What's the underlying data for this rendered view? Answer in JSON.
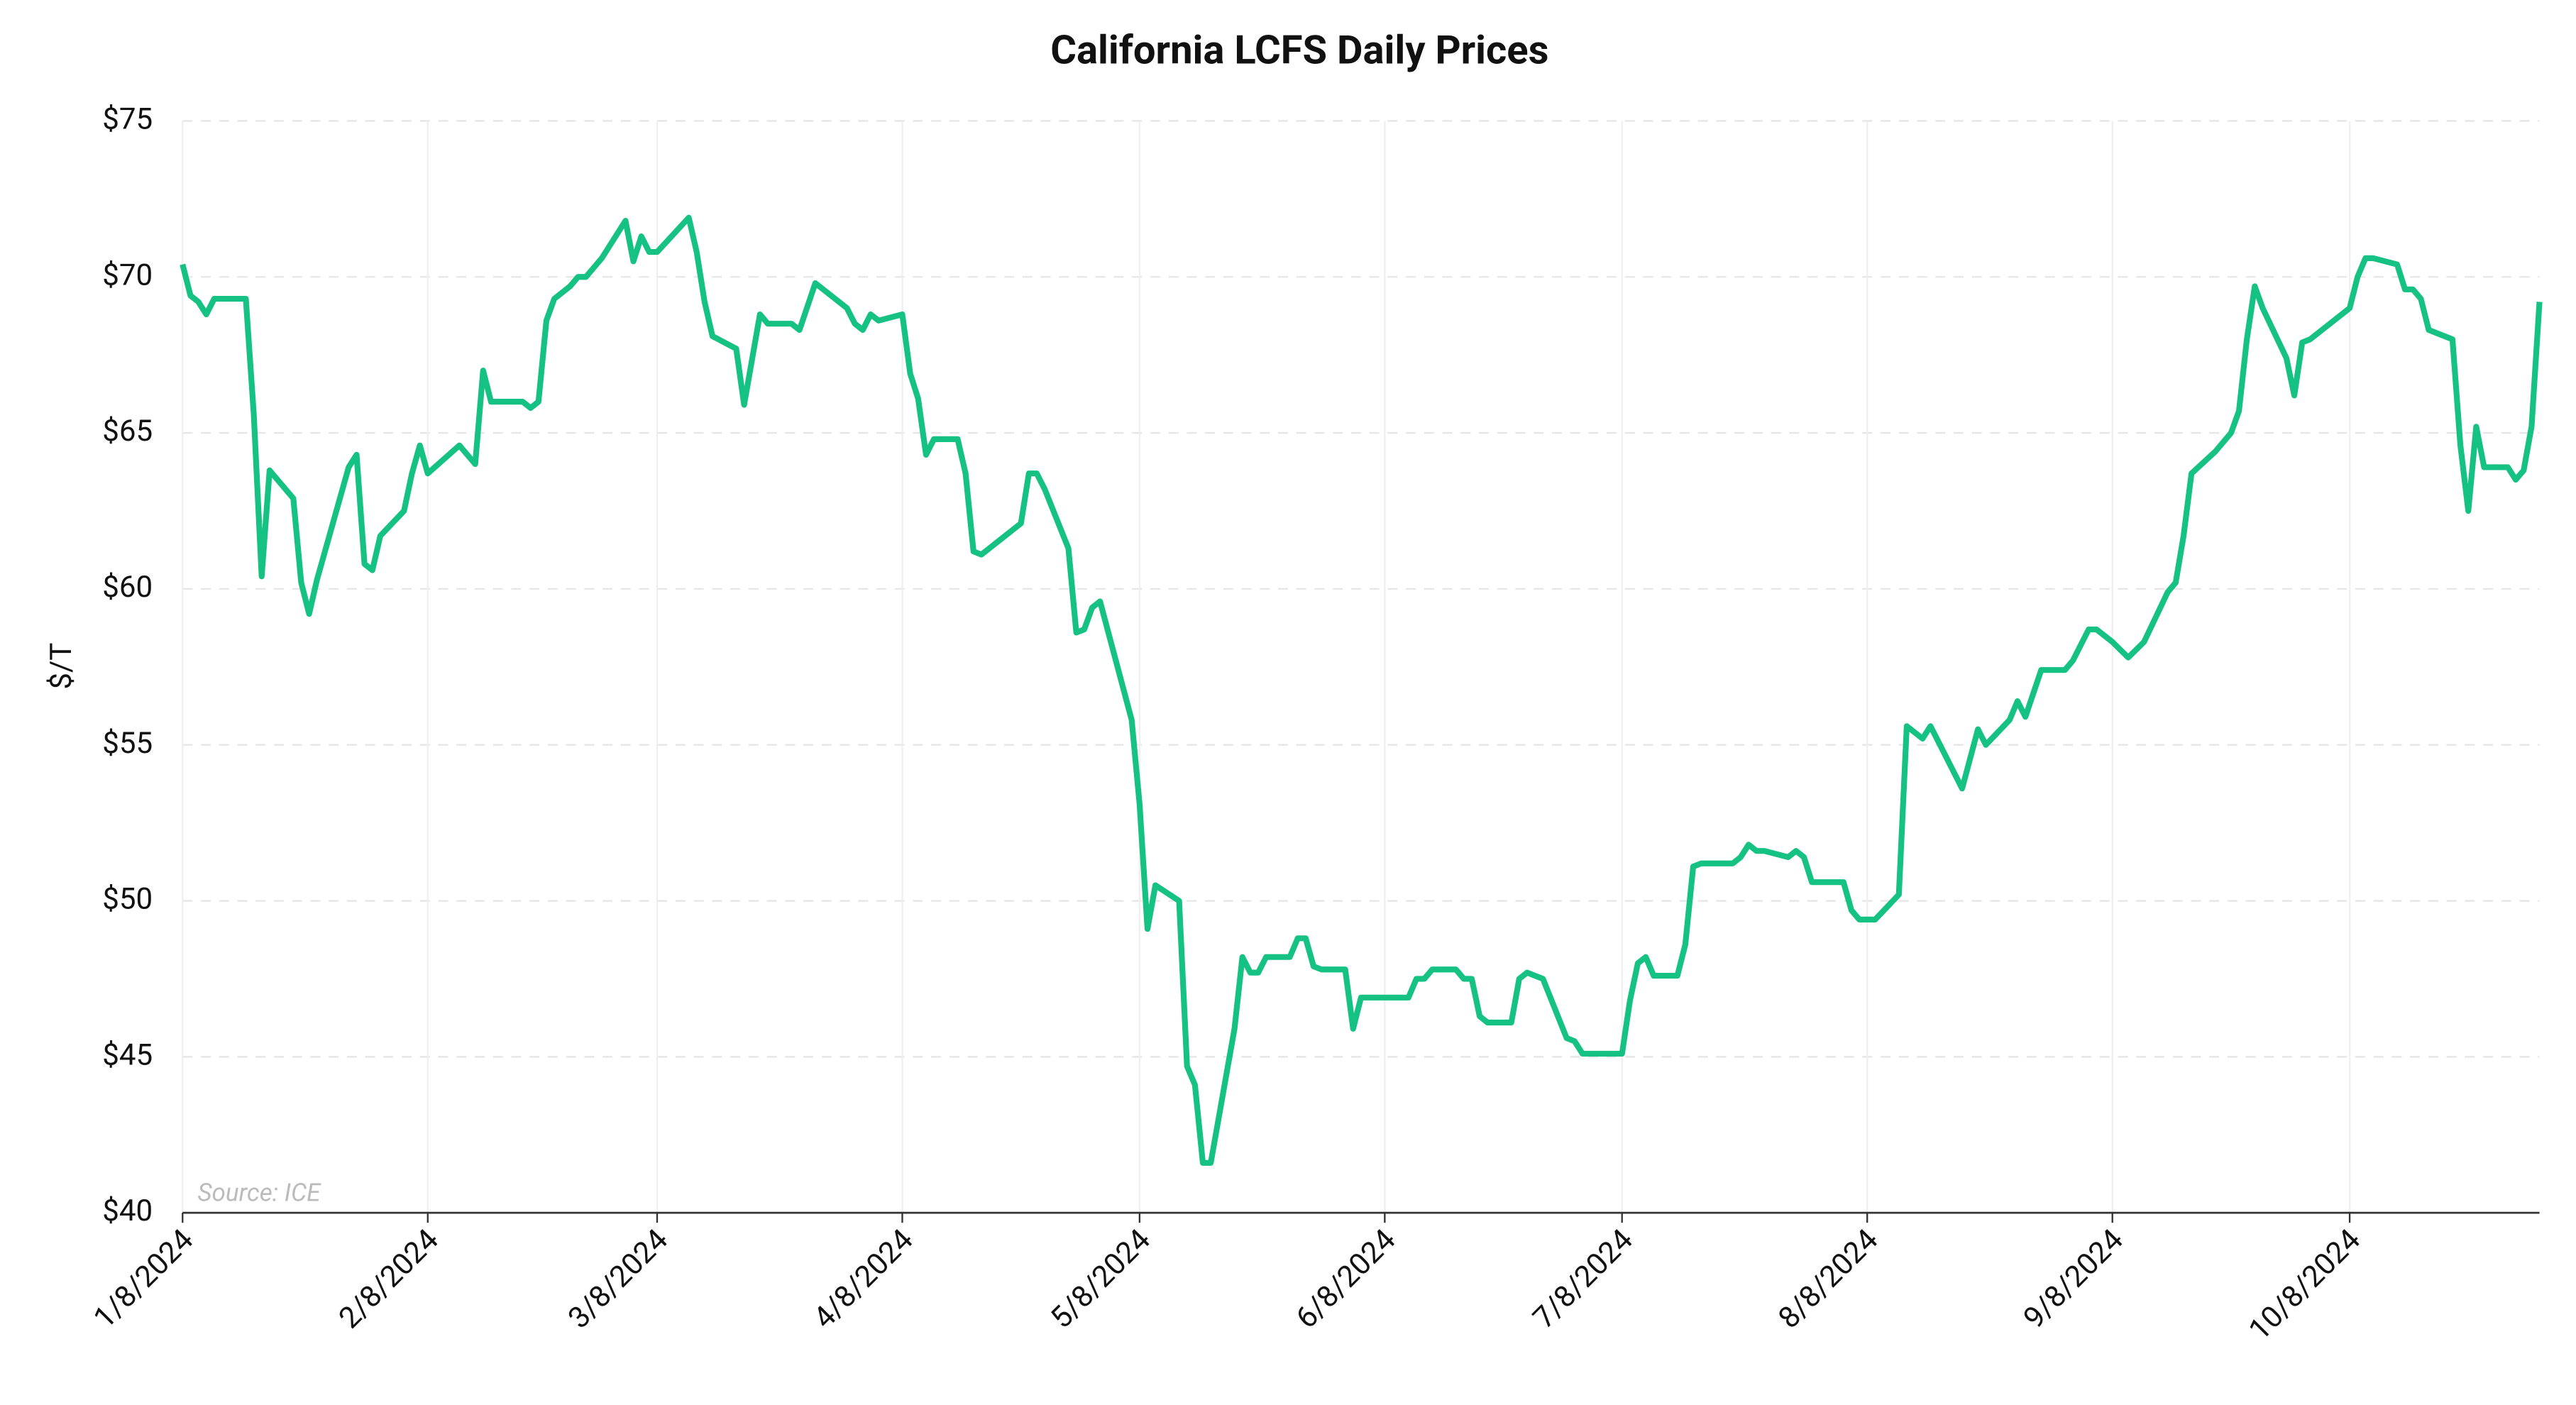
{
  "chart_data": {
    "type": "line",
    "title": "California LCFS Daily Prices",
    "y_label": "$/T",
    "annotation": "Source: ICE",
    "color": "#16c184",
    "grid": true,
    "xlim": [
      "1/8/2024",
      "11/1/2024"
    ],
    "xticks": [
      "1/8/2024",
      "2/8/2024",
      "3/8/2024",
      "4/8/2024",
      "5/8/2024",
      "6/8/2024",
      "7/8/2024",
      "8/8/2024",
      "9/8/2024",
      "10/8/2024"
    ],
    "ylim": [
      40,
      75
    ],
    "yticks": [
      {
        "value": 40,
        "label": "$40"
      },
      {
        "value": 45,
        "label": "$45"
      },
      {
        "value": 50,
        "label": "$50"
      },
      {
        "value": 55,
        "label": "$55"
      },
      {
        "value": 60,
        "label": "$60"
      },
      {
        "value": 65,
        "label": "$65"
      },
      {
        "value": 70,
        "label": "$70"
      },
      {
        "value": 75,
        "label": "$75"
      }
    ],
    "x": [
      "1/8/2024",
      "1/9/2024",
      "1/10/2024",
      "1/11/2024",
      "1/12/2024",
      "1/16/2024",
      "1/17/2024",
      "1/18/2024",
      "1/19/2024",
      "1/22/2024",
      "1/23/2024",
      "1/24/2024",
      "1/25/2024",
      "1/29/2024",
      "1/30/2024",
      "1/31/2024",
      "2/1/2024",
      "2/2/2024",
      "2/5/2024",
      "2/6/2024",
      "2/7/2024",
      "2/8/2024",
      "2/12/2024",
      "2/14/2024",
      "2/15/2024",
      "2/16/2024",
      "2/20/2024",
      "2/21/2024",
      "2/22/2024",
      "2/23/2024",
      "2/24/2024",
      "2/26/2024",
      "2/27/2024",
      "2/28/2024",
      "3/1/2024",
      "3/4/2024",
      "3/5/2024",
      "3/6/2024",
      "3/7/2024",
      "3/8/2024",
      "3/12/2024",
      "3/13/2024",
      "3/14/2024",
      "3/15/2024",
      "3/18/2024",
      "3/19/2024",
      "3/21/2024",
      "3/22/2024",
      "3/25/2024",
      "3/26/2024",
      "3/28/2024",
      "4/1/2024",
      "4/2/2024",
      "4/3/2024",
      "4/4/2024",
      "4/5/2024",
      "4/8/2024",
      "4/9/2024",
      "4/10/2024",
      "4/11/2024",
      "4/12/2024",
      "4/15/2024",
      "4/16/2024",
      "4/17/2024",
      "4/18/2024",
      "4/23/2024",
      "4/24/2024",
      "4/25/2024",
      "4/26/2024",
      "4/29/2024",
      "4/30/2024",
      "5/1/2024",
      "5/2/2024",
      "5/3/2024",
      "5/7/2024",
      "5/8/2024",
      "5/9/2024",
      "5/10/2024",
      "5/13/2024",
      "5/14/2024",
      "5/15/2024",
      "5/16/2024",
      "5/17/2024",
      "5/20/2024",
      "5/21/2024",
      "5/22/2024",
      "5/23/2024",
      "5/24/2024",
      "5/27/2024",
      "5/28/2024",
      "5/29/2024",
      "5/30/2024",
      "5/31/2024",
      "6/3/2024",
      "6/4/2024",
      "6/5/2024",
      "6/11/2024",
      "6/12/2024",
      "6/13/2024",
      "6/14/2024",
      "6/17/2024",
      "6/18/2024",
      "6/19/2024",
      "6/20/2024",
      "6/21/2024",
      "6/24/2024",
      "6/25/2024",
      "6/26/2024",
      "6/27/2024",
      "6/28/2024",
      "7/1/2024",
      "7/2/2024",
      "7/3/2024",
      "7/8/2024",
      "7/9/2024",
      "7/10/2024",
      "7/11/2024",
      "7/12/2024",
      "7/15/2024",
      "7/16/2024",
      "7/17/2024",
      "7/18/2024",
      "7/22/2024",
      "7/23/2024",
      "7/24/2024",
      "7/25/2024",
      "7/26/2024",
      "7/29/2024",
      "7/30/2024",
      "7/31/2024",
      "8/1/2024",
      "8/4/2024",
      "8/5/2024",
      "8/6/2024",
      "8/7/2024",
      "8/8/2024",
      "8/9/2024",
      "8/12/2024",
      "8/13/2024",
      "8/15/2024",
      "8/16/2024",
      "8/20/2024",
      "8/22/2024",
      "8/23/2024",
      "8/26/2024",
      "8/27/2024",
      "8/28/2024",
      "8/30/2024",
      "9/2/2024",
      "9/3/2024",
      "9/5/2024",
      "9/6/2024",
      "9/8/2024",
      "9/10/2024",
      "9/12/2024",
      "9/15/2024",
      "9/16/2024",
      "9/17/2024",
      "9/18/2024",
      "9/21/2024",
      "9/23/2024",
      "9/24/2024",
      "9/25/2024",
      "9/26/2024",
      "9/27/2024",
      "9/30/2024",
      "10/1/2024",
      "10/2/2024",
      "10/3/2024",
      "10/8/2024",
      "10/9/2024",
      "10/10/2024",
      "10/11/2024",
      "10/14/2024",
      "10/15/2024",
      "10/16/2024",
      "10/17/2024",
      "10/18/2024",
      "10/21/2024",
      "10/22/2024",
      "10/23/2024",
      "10/24/2024",
      "10/25/2024",
      "10/28/2024",
      "10/29/2024",
      "10/30/2024",
      "10/31/2024",
      "11/1/2024"
    ],
    "values": [
      70.4,
      69.4,
      69.2,
      68.8,
      69.3,
      69.3,
      65.6,
      60.4,
      63.8,
      62.9,
      60.2,
      59.2,
      60.3,
      63.9,
      64.3,
      60.8,
      60.6,
      61.7,
      62.5,
      63.7,
      64.6,
      63.7,
      64.6,
      64.0,
      67.0,
      66.0,
      66.0,
      65.8,
      66.0,
      68.6,
      69.3,
      69.7,
      70.0,
      70.0,
      70.6,
      71.8,
      70.5,
      71.3,
      70.8,
      70.8,
      71.9,
      70.8,
      69.2,
      68.1,
      67.7,
      65.9,
      68.8,
      68.5,
      68.5,
      68.3,
      69.8,
      69.0,
      68.5,
      68.3,
      68.8,
      68.6,
      68.8,
      66.9,
      66.1,
      64.3,
      64.8,
      64.8,
      63.7,
      61.2,
      61.1,
      62.1,
      63.7,
      63.7,
      63.2,
      61.3,
      58.6,
      58.7,
      59.4,
      59.6,
      55.8,
      53.1,
      49.1,
      50.5,
      50.0,
      44.7,
      44.1,
      41.6,
      41.6,
      45.9,
      48.2,
      47.7,
      47.7,
      48.2,
      48.2,
      48.8,
      48.8,
      47.9,
      47.8,
      47.8,
      45.9,
      46.9,
      46.9,
      47.5,
      47.5,
      47.8,
      47.8,
      47.5,
      47.5,
      46.3,
      46.1,
      46.1,
      47.5,
      47.7,
      47.6,
      47.5,
      45.6,
      45.5,
      45.1,
      45.1,
      46.8,
      48.0,
      48.2,
      47.6,
      47.6,
      48.6,
      51.1,
      51.2,
      51.2,
      51.4,
      51.8,
      51.6,
      51.6,
      51.4,
      51.6,
      51.4,
      50.6,
      50.6,
      50.6,
      49.7,
      49.4,
      49.4,
      49.4,
      50.2,
      55.6,
      55.2,
      55.6,
      53.6,
      55.5,
      55.0,
      55.8,
      56.4,
      55.9,
      57.4,
      57.4,
      57.7,
      58.7,
      58.7,
      58.3,
      57.8,
      58.3,
      59.9,
      60.2,
      61.7,
      63.7,
      64.4,
      65.0,
      65.7,
      68.0,
      69.7,
      69.0,
      67.4,
      66.2,
      67.9,
      68.0,
      69.0,
      70.0,
      70.6,
      70.6,
      70.4,
      69.6,
      69.6,
      69.3,
      68.3,
      68.0,
      64.6,
      62.5,
      65.2,
      63.9,
      63.9,
      63.5,
      63.8,
      65.2,
      69.2
    ]
  }
}
